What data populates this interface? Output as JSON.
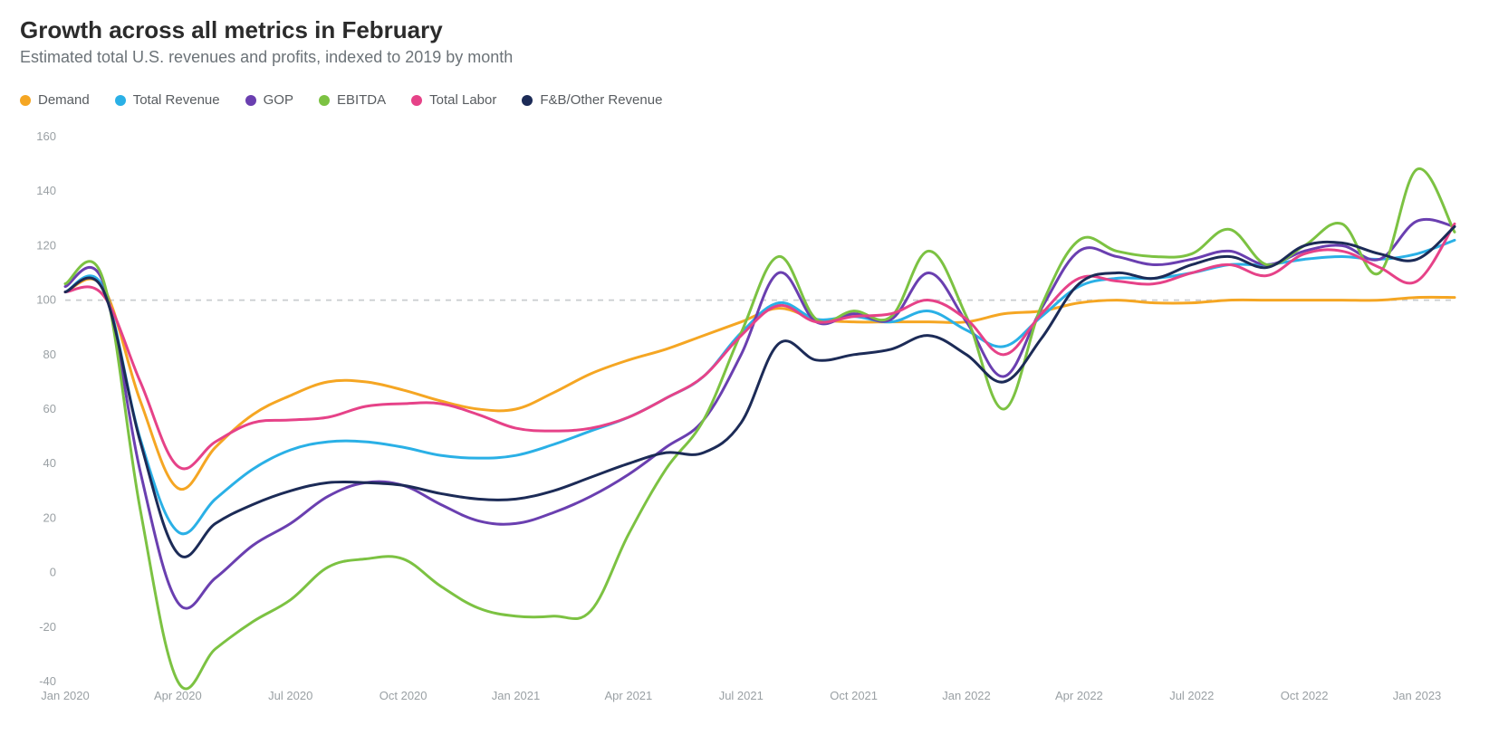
{
  "header": {
    "title": "Growth across all metrics in February",
    "subtitle": "Estimated total U.S. revenues and profits, indexed to 2019 by month",
    "title_color": "#2b2b2b",
    "subtitle_color": "#6c7378",
    "title_fontsize": 26,
    "subtitle_fontsize": 18
  },
  "chart": {
    "type": "line",
    "background_color": "#ffffff",
    "line_width": 3,
    "reference_line": {
      "value": 100,
      "color": "#c9cccf",
      "dash": "6 6"
    },
    "y_axis": {
      "min": -40,
      "max": 160,
      "tick_step": 20,
      "ticks": [
        -40,
        -20,
        0,
        20,
        40,
        60,
        80,
        100,
        120,
        140,
        160
      ],
      "label_color": "#9aa0a4",
      "label_fontsize": 13
    },
    "x_axis": {
      "min_index": 0,
      "max_index": 37,
      "tick_indices": [
        0,
        3,
        6,
        9,
        12,
        15,
        18,
        21,
        24,
        27,
        30,
        33,
        36
      ],
      "tick_labels": [
        "Jan 2020",
        "Apr 2020",
        "Jul 2020",
        "Oct 2020",
        "Jan 2021",
        "Apr 2021",
        "Jul 2021",
        "Oct 2021",
        "Jan 2022",
        "Apr 2022",
        "Jul 2022",
        "Oct 2022",
        "Jan 2023"
      ],
      "label_color": "#9aa0a4",
      "label_fontsize": 13
    },
    "series": [
      {
        "key": "demand",
        "label": "Demand",
        "color": "#f5a623",
        "values": [
          103,
          105,
          63,
          31,
          46,
          58,
          65,
          70,
          70,
          67,
          63,
          60,
          60,
          66,
          73,
          78,
          82,
          87,
          92,
          97,
          93,
          92,
          92,
          92,
          92,
          95,
          96,
          99,
          100,
          99,
          99,
          100,
          100,
          100,
          100,
          100,
          101,
          101
        ]
      },
      {
        "key": "total_revenue",
        "label": "Total Revenue",
        "color": "#2ab0e6",
        "values": [
          103,
          105,
          49,
          15,
          27,
          38,
          45,
          48,
          48,
          46,
          43,
          42,
          43,
          47,
          52,
          57,
          64,
          72,
          88,
          99,
          93,
          94,
          92,
          96,
          89,
          83,
          94,
          105,
          108,
          108,
          110,
          113,
          113,
          115,
          116,
          115,
          117,
          122
        ]
      },
      {
        "key": "gop",
        "label": "GOP",
        "color": "#6a3fb0",
        "values": [
          105,
          107,
          37,
          -11,
          -2,
          10,
          18,
          28,
          33,
          32,
          25,
          19,
          18,
          22,
          28,
          36,
          46,
          56,
          80,
          110,
          92,
          95,
          93,
          110,
          92,
          72,
          97,
          118,
          116,
          113,
          115,
          118,
          113,
          118,
          120,
          115,
          129,
          127
        ]
      },
      {
        "key": "ebitda",
        "label": "EBITDA",
        "color": "#7cc242",
        "values": [
          106,
          108,
          23,
          -40,
          -28,
          -18,
          -10,
          2,
          5,
          5,
          -5,
          -13,
          -16,
          -16,
          -14,
          14,
          38,
          56,
          88,
          116,
          93,
          96,
          94,
          118,
          94,
          60,
          98,
          122,
          118,
          116,
          117,
          126,
          113,
          120,
          128,
          110,
          148,
          125
        ]
      },
      {
        "key": "total_labor",
        "label": "Total Labor",
        "color": "#e64288",
        "values": [
          103,
          102,
          70,
          39,
          48,
          55,
          56,
          57,
          61,
          62,
          62,
          58,
          53,
          52,
          53,
          57,
          64,
          72,
          87,
          98,
          92,
          94,
          95,
          100,
          93,
          80,
          95,
          108,
          107,
          106,
          110,
          113,
          109,
          117,
          118,
          112,
          107,
          128
        ]
      },
      {
        "key": "fb_other",
        "label": "F&B/Other Revenue",
        "color": "#1c2b57",
        "values": [
          103,
          104,
          48,
          7,
          18,
          25,
          30,
          33,
          33,
          32,
          29,
          27,
          27,
          30,
          35,
          40,
          44,
          44,
          55,
          84,
          78,
          80,
          82,
          87,
          80,
          70,
          86,
          106,
          110,
          108,
          113,
          116,
          112,
          120,
          121,
          117,
          115,
          127
        ]
      }
    ]
  }
}
